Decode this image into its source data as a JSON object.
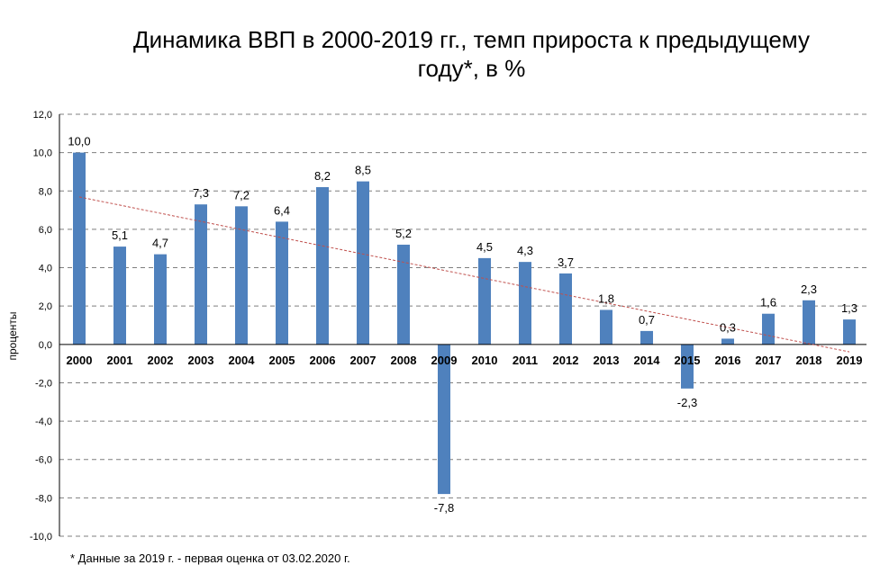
{
  "title_line1": "Динамика ВВП в 2000-2019 гг., темп прироста к предыдущему",
  "title_line2": "году*, в %",
  "footnote": "* Данные за 2019  г. - первая оценка от 03.02.2020  г.",
  "chart_data": {
    "type": "bar",
    "ylabel": "проценты",
    "ylim": [
      -10,
      12
    ],
    "yticks": [
      12,
      10,
      8,
      6,
      4,
      2,
      0,
      -2,
      -4,
      -6,
      -8,
      -10
    ],
    "ytick_labels": [
      "12,0",
      "10,0",
      "8,0",
      "6,0",
      "4,0",
      "2,0",
      "0,0",
      "-2,0",
      "-4,0",
      "-6,0",
      "-8,0",
      "-10,0"
    ],
    "grid": true,
    "categories": [
      "2000",
      "2001",
      "2002",
      "2003",
      "2004",
      "2005",
      "2006",
      "2007",
      "2008",
      "2009",
      "2010",
      "2011",
      "2012",
      "2013",
      "2014",
      "2015",
      "2016",
      "2017",
      "2018",
      "2019"
    ],
    "values": [
      10.0,
      5.1,
      4.7,
      7.3,
      7.2,
      6.4,
      8.2,
      8.5,
      5.2,
      -7.8,
      4.5,
      4.3,
      3.7,
      1.8,
      0.7,
      -2.3,
      0.3,
      1.6,
      2.3,
      1.3
    ],
    "value_labels": [
      "10,0",
      "5,1",
      "4,7",
      "7,3",
      "7,2",
      "6,4",
      "8,2",
      "8,5",
      "5,2",
      "-7,8",
      "4,5",
      "4,3",
      "3,7",
      "1,8",
      "0,7",
      "-2,3",
      "0,3",
      "1,6",
      "2,3",
      "1,3"
    ],
    "trendline": {
      "type": "linear",
      "color": "#c0504d",
      "dash": true
    },
    "bar_color": "#4f81bd"
  }
}
